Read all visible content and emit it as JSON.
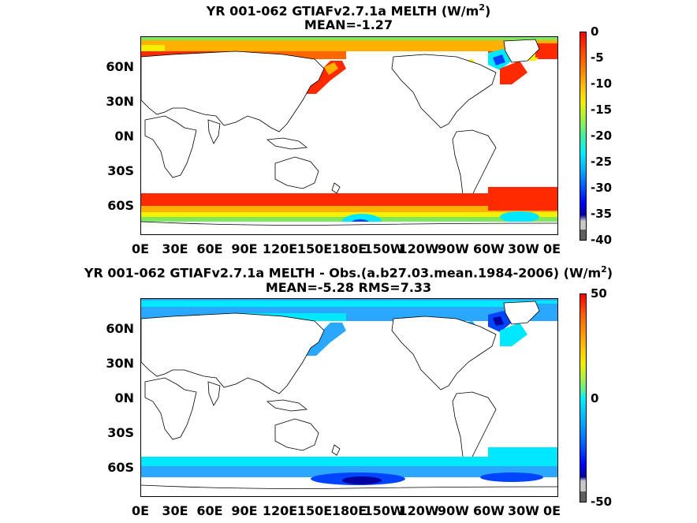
{
  "top": {
    "title_line1": "YR 001-062 GTIAFv2.7.1a  MELTH (W/m",
    "title_sup": "2",
    "title_close": ")",
    "title_line2": "MEAN=-1.27",
    "colorbar_ticks": [
      "0",
      "-5",
      "-10",
      "-15",
      "-20",
      "-25",
      "-30",
      "-35",
      "-40"
    ],
    "colorbar_range": [
      -40,
      0
    ]
  },
  "bottom": {
    "title_line1": "YR 001-062 GTIAFv2.7.1a MELTH - Obs.(a.b27.03.mean.1984-2006) (W/m",
    "title_sup": "2",
    "title_close": ")",
    "title_line2": "MEAN=-5.28 RMS=7.33",
    "colorbar_ticks": [
      "50",
      "0",
      "-50"
    ],
    "colorbar_range": [
      -50,
      50
    ]
  },
  "lat_ticks": [
    "60N",
    "30N",
    "0N",
    "30S",
    "60S"
  ],
  "lon_ticks": [
    "0E",
    "30E",
    "60E",
    "90E",
    "120E",
    "150E",
    "180E",
    "150W",
    "120W",
    "90W",
    "60W",
    "30W",
    "0E"
  ],
  "colors": {
    "red": "#ff2a00",
    "orange": "#ffb000",
    "yellow": "#f4f000",
    "green": "#7ee85a",
    "cyan": "#00e8ff",
    "lightblue": "#2aa8ff",
    "blue": "#0044ff",
    "darkblue": "#0000a0"
  }
}
